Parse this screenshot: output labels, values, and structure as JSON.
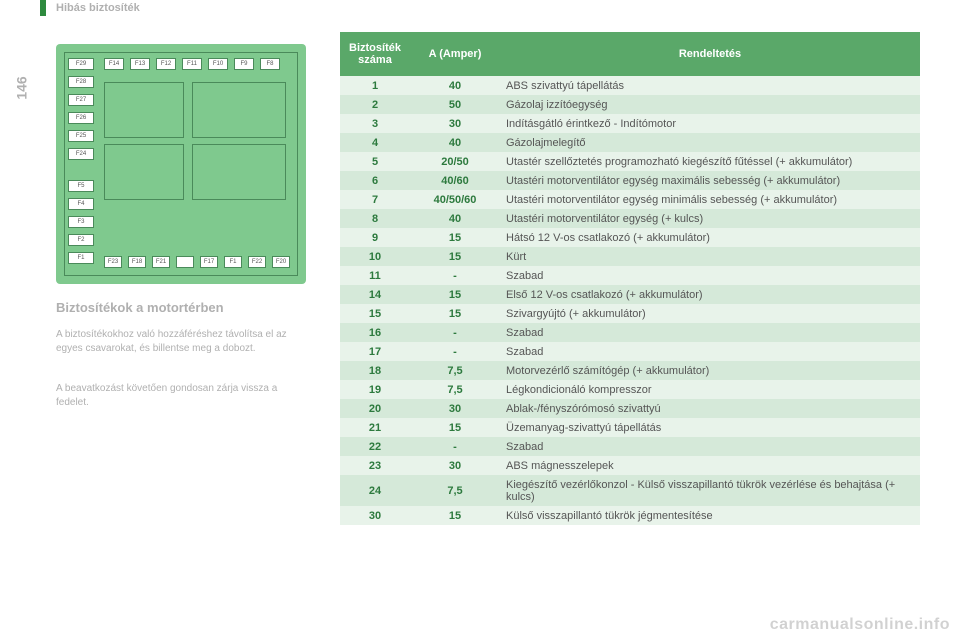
{
  "header_title": "Hibás biztosíték",
  "page_number": "146",
  "section_title": "Biztosítékok a motortérben",
  "body_para1": "A biztosítékokhoz való hozzáféréshez távolítsa el az egyes csavarokat, és billentse meg a dobozt.",
  "body_para2": "A beavatkozást követően gondosan zárja vissza a fedelet.",
  "diagram": {
    "left_fuses": [
      "F29",
      "F28",
      "F27",
      "F26",
      "F25",
      "F24"
    ],
    "top_fuses": [
      "F14",
      "F13",
      "F12",
      "F11",
      "F10",
      "F9",
      "F8"
    ],
    "mid_left_fuses": [
      "F5",
      "F4",
      "F3",
      "F2",
      "F1"
    ],
    "bottom_fuses": [
      "F23",
      "F18",
      "F21",
      "",
      "F17",
      "F1",
      "F22",
      "F20"
    ]
  },
  "table": {
    "headers": [
      "Biztosíték száma",
      "A (Amper)",
      "Rendeltetés"
    ],
    "rows": [
      [
        "1",
        "40",
        "ABS szivattyú tápellátás"
      ],
      [
        "2",
        "50",
        "Gázolaj izzítóegység"
      ],
      [
        "3",
        "30",
        "Indításgátló érintkező - Indítómotor"
      ],
      [
        "4",
        "40",
        "Gázolajmelegítő"
      ],
      [
        "5",
        "20/50",
        "Utastér szellőztetés programozható kiegészítő fűtéssel (+ akkumulátor)"
      ],
      [
        "6",
        "40/60",
        "Utastéri motorventilátor egység maximális sebesség (+ akkumulátor)"
      ],
      [
        "7",
        "40/50/60",
        "Utastéri motorventilátor egység minimális sebesség (+ akkumulátor)"
      ],
      [
        "8",
        "40",
        "Utastéri motorventilátor egység (+ kulcs)"
      ],
      [
        "9",
        "15",
        "Hátsó 12 V-os csatlakozó (+ akkumulátor)"
      ],
      [
        "10",
        "15",
        "Kürt"
      ],
      [
        "11",
        "-",
        "Szabad"
      ],
      [
        "14",
        "15",
        "Első 12 V-os csatlakozó (+ akkumulátor)"
      ],
      [
        "15",
        "15",
        "Szivargyújtó (+ akkumulátor)"
      ],
      [
        "16",
        "-",
        "Szabad"
      ],
      [
        "17",
        "-",
        "Szabad"
      ],
      [
        "18",
        "7,5",
        "Motorvezérlő számítógép (+ akkumulátor)"
      ],
      [
        "19",
        "7,5",
        "Légkondicionáló kompresszor"
      ],
      [
        "20",
        "30",
        "Ablak-/fényszórómosó szivattyú"
      ],
      [
        "21",
        "15",
        "Üzemanyag-szivattyú tápellátás"
      ],
      [
        "22",
        "-",
        "Szabad"
      ],
      [
        "23",
        "30",
        "ABS mágnesszelepek"
      ],
      [
        "24",
        "7,5",
        "Kiegészítő vezérlőkonzol - Külső visszapillantó tükrök vezérlése és behajtása (+ kulcs)"
      ],
      [
        "30",
        "15",
        "Külső visszapillantó tükrök jégmentesítése"
      ]
    ]
  },
  "watermark": "carmanualsonline.info"
}
